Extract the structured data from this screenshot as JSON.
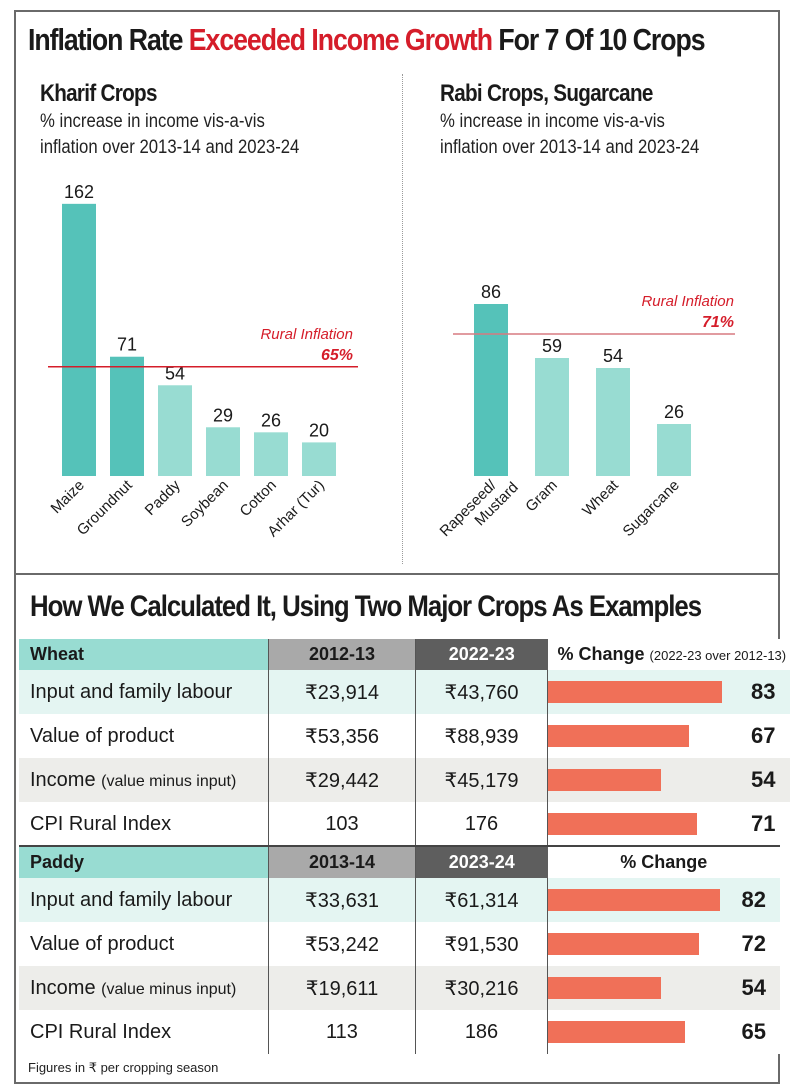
{
  "title": {
    "prefix": "Inflation Rate ",
    "highlight": "Exceeded Income Growth",
    "suffix": " For 7 Of 10 Crops"
  },
  "colors": {
    "dark_teal": "#55c2b9",
    "light_teal": "#98dcd2",
    "inflation_red": "#d51d2a",
    "pct_bar": "#f07058"
  },
  "chart_data": [
    {
      "type": "bar",
      "title": "Kharif Crops",
      "subtitle_line1": "% increase in income vis-a-vis",
      "subtitle_line2": "inflation over 2013-14 and 2023-24",
      "categories": [
        "Maize",
        "Groundnut",
        "Paddy",
        "Soybean",
        "Cotton",
        "Arhar (Tur)"
      ],
      "values": [
        162,
        71,
        54,
        29,
        26,
        20
      ],
      "above_inflation": [
        true,
        true,
        false,
        false,
        false,
        false
      ],
      "reference_line": {
        "label": "Rural Inflation",
        "value": 65,
        "value_label": "65%"
      },
      "xlabel": "",
      "ylabel": "",
      "ylim": [
        0,
        170
      ],
      "grid": false
    },
    {
      "type": "bar",
      "title": "Rabi Crops, Sugarcane",
      "subtitle_line1": "% increase in income vis-a-vis",
      "subtitle_line2": "inflation over 2013-14 and 2023-24",
      "categories": [
        "Rapeseed/ Mustard",
        "Gram",
        "Wheat",
        "Sugarcane"
      ],
      "values": [
        86,
        59,
        54,
        26
      ],
      "above_inflation": [
        true,
        false,
        false,
        false
      ],
      "reference_line": {
        "label": "Rural Inflation",
        "value": 71,
        "value_label": "71%"
      },
      "xlabel": "",
      "ylabel": "",
      "ylim": [
        0,
        170
      ],
      "grid": false
    }
  ],
  "calc": {
    "title": "How We Calculated It, Using Two Major Crops As Examples",
    "wheat": {
      "crop": "Wheat",
      "year1": "2012-13",
      "year2": "2022-23",
      "pct_head": "% Change",
      "pct_head_note": "(2022-23 over 2012-13)",
      "rows": [
        {
          "label": "Input and family labour",
          "note": "",
          "y1": "₹23,914",
          "y2": "₹43,760",
          "pct": 83
        },
        {
          "label": "Value of product",
          "note": "",
          "y1": "₹53,356",
          "y2": "₹88,939",
          "pct": 67
        },
        {
          "label": "Income",
          "note": "(value minus input)",
          "y1": "₹29,442",
          "y2": "₹45,179",
          "pct": 54
        },
        {
          "label": "CPI Rural Index",
          "note": "",
          "y1": "103",
          "y2": "176",
          "pct": 71
        }
      ]
    },
    "paddy": {
      "crop": "Paddy",
      "year1": "2013-14",
      "year2": "2023-24",
      "pct_head": "% Change",
      "rows": [
        {
          "label": "Input and family labour",
          "note": "",
          "y1": "₹33,631",
          "y2": "₹61,314",
          "pct": 82
        },
        {
          "label": "Value of product",
          "note": "",
          "y1": "₹53,242",
          "y2": "₹91,530",
          "pct": 72
        },
        {
          "label": "Income",
          "note": "(value minus input)",
          "y1": "₹19,611",
          "y2": "₹30,216",
          "pct": 54
        },
        {
          "label": "CPI Rural Index",
          "note": "",
          "y1": "113",
          "y2": "186",
          "pct": 65
        }
      ]
    },
    "footnote": "Figures in ₹ per cropping season"
  }
}
